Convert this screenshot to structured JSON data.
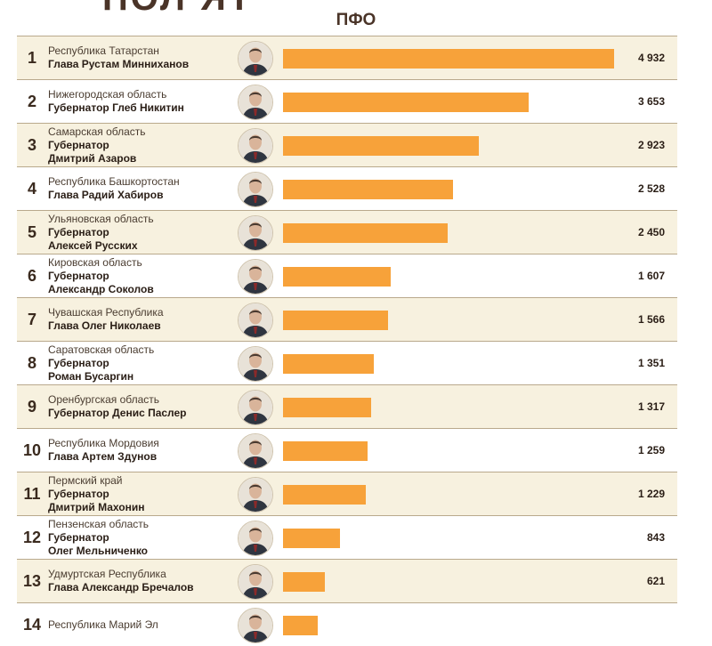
{
  "header": {
    "title_fragment": "ПОЛ ЯТ",
    "subtitle": "ПФО"
  },
  "colors": {
    "bar": "#f7a23a",
    "row_alt": "#f7f1df",
    "divider": "#b9a98c"
  },
  "chart_data": {
    "type": "bar",
    "orientation": "horizontal",
    "title": "ПФО",
    "xlim": [
      0,
      4932
    ],
    "rows": [
      {
        "rank": "1",
        "region": "Республика Татарстан",
        "leader": "Глава Рустам Минниханов",
        "value": 4932,
        "value_label": "4 932"
      },
      {
        "rank": "2",
        "region": "Нижегородская область",
        "leader": "Губернатор Глеб Никитин",
        "value": 3653,
        "value_label": "3 653"
      },
      {
        "rank": "3",
        "region": "Самарская область",
        "leader": "Губернатор\nДмитрий Азаров",
        "value": 2923,
        "value_label": "2 923"
      },
      {
        "rank": "4",
        "region": "Республика Башкортостан",
        "leader": "Глава Радий Хабиров",
        "value": 2528,
        "value_label": "2 528"
      },
      {
        "rank": "5",
        "region": "Ульяновская область",
        "leader": "Губернатор\nАлексей Русских",
        "value": 2450,
        "value_label": "2 450"
      },
      {
        "rank": "6",
        "region": "Кировская область",
        "leader": "Губернатор\nАлександр Соколов",
        "value": 1607,
        "value_label": "1 607"
      },
      {
        "rank": "7",
        "region": "Чувашская Республика",
        "leader": "Глава Олег Николаев",
        "value": 1566,
        "value_label": "1 566"
      },
      {
        "rank": "8",
        "region": "Саратовская область",
        "leader": "Губернатор\nРоман Бусаргин",
        "value": 1351,
        "value_label": "1 351"
      },
      {
        "rank": "9",
        "region": "Оренбургская область",
        "leader": "Губернатор Денис Паслер",
        "value": 1317,
        "value_label": "1 317"
      },
      {
        "rank": "10",
        "region": "Республика Мордовия",
        "leader": "Глава Артем Здунов",
        "value": 1259,
        "value_label": "1 259"
      },
      {
        "rank": "11",
        "region": "Пермский край",
        "leader": "Губернатор\nДмитрий Махонин",
        "value": 1229,
        "value_label": "1 229"
      },
      {
        "rank": "12",
        "region": "Пензенская область",
        "leader": "Губернатор\nОлег Мельниченко",
        "value": 843,
        "value_label": "843"
      },
      {
        "rank": "13",
        "region": "Удмуртская Республика",
        "leader": "Глава Александр Бречалов",
        "value": 621,
        "value_label": "621"
      },
      {
        "rank": "14",
        "region": "Республика Марий Эл",
        "leader": "",
        "value": 520,
        "value_label": ""
      }
    ]
  }
}
